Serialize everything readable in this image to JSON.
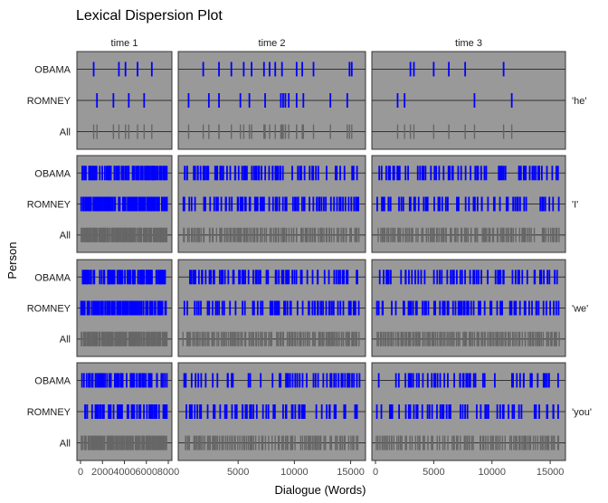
{
  "chart_data": {
    "type": "dispersion",
    "title": "Lexical Dispersion Plot",
    "xlabel": "Dialogue (Words)",
    "ylabel": "Person",
    "persons": [
      "OBAMA",
      "ROMNEY",
      "All"
    ],
    "columns": [
      {
        "label": "time 1",
        "xlim": [
          0,
          8000
        ],
        "ticks": [
          0,
          2000,
          4000,
          6000,
          8000
        ]
      },
      {
        "label": "time 2",
        "xlim": [
          0,
          16000
        ],
        "ticks": [
          5000,
          10000,
          15000
        ]
      },
      {
        "label": "time 3",
        "xlim": [
          0,
          16000
        ],
        "ticks": [
          0,
          5000,
          10000,
          15000
        ]
      }
    ],
    "words": [
      "'he'",
      "'I'",
      "'we'",
      "'you'"
    ],
    "colors": {
      "OBAMA": "#0000ff",
      "ROMNEY": "#0000ff",
      "All": "#666666",
      "panel_bg": "#999999",
      "ref_line": "#333333"
    },
    "occurrences": [
      [
        {
          "OBAMA": [
            1200,
            3500,
            4100,
            5200,
            6500
          ],
          "ROMNEY": [
            1500,
            3000,
            4400,
            5800
          ]
        },
        {
          "OBAMA": [
            1900,
            3300,
            4400,
            5500,
            6200,
            7300,
            7800,
            8300,
            8900,
            10200,
            10700,
            11700,
            14900,
            15100
          ],
          "ROMNEY": [
            600,
            2400,
            3300,
            5200,
            6000,
            7400,
            8800,
            9000,
            9200,
            9500,
            10200,
            10800,
            13200,
            14700
          ]
        },
        {
          "OBAMA": [
            3000,
            3300,
            5000,
            6300,
            7700,
            11000
          ],
          "ROMNEY": [
            1900,
            2500,
            8500,
            11700
          ]
        }
      ],
      [
        {
          "density": [
            [
              [
                "OBAMA"
              ],
              0.55
            ],
            [
              [
                "ROMNEY"
              ],
              0.6
            ],
            [
              [
                "All"
              ],
              0.9
            ]
          ]
        },
        {
          "density": [
            [
              [
                "OBAMA"
              ],
              0.55
            ],
            [
              [
                "ROMNEY"
              ],
              0.6
            ],
            [
              [
                "All"
              ],
              0.9
            ]
          ]
        },
        {
          "density": [
            [
              [
                "OBAMA"
              ],
              0.45
            ],
            [
              [
                "ROMNEY"
              ],
              0.5
            ],
            [
              [
                "All"
              ],
              0.85
            ]
          ]
        }
      ],
      [
        {
          "density": [
            [
              [
                "OBAMA"
              ],
              0.55
            ],
            [
              [
                "ROMNEY"
              ],
              0.6
            ],
            [
              [
                "All"
              ],
              0.9
            ]
          ]
        },
        {
          "density": [
            [
              [
                "OBAMA"
              ],
              0.55
            ],
            [
              [
                "ROMNEY"
              ],
              0.55
            ],
            [
              [
                "All"
              ],
              0.9
            ]
          ]
        },
        {
          "density": [
            [
              [
                "OBAMA"
              ],
              0.5
            ],
            [
              [
                "ROMNEY"
              ],
              0.55
            ],
            [
              [
                "All"
              ],
              0.95
            ]
          ]
        }
      ],
      [
        {
          "density": [
            [
              [
                "OBAMA"
              ],
              0.45
            ],
            [
              [
                "ROMNEY"
              ],
              0.5
            ],
            [
              [
                "All"
              ],
              0.85
            ]
          ]
        },
        {
          "density": [
            [
              [
                "OBAMA"
              ],
              0.4
            ],
            [
              [
                "ROMNEY"
              ],
              0.45
            ],
            [
              [
                "All"
              ],
              0.85
            ]
          ]
        },
        {
          "density": [
            [
              [
                "OBAMA"
              ],
              0.35
            ],
            [
              [
                "ROMNEY"
              ],
              0.4
            ],
            [
              [
                "All"
              ],
              0.8
            ]
          ]
        }
      ]
    ]
  }
}
